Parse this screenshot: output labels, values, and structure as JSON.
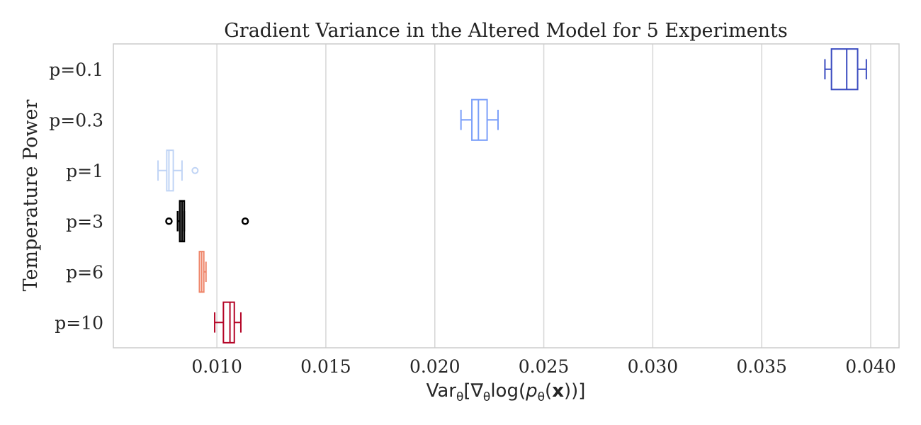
{
  "chart_data": {
    "type": "boxplot",
    "orientation": "horizontal",
    "title": "Gradient Variance in the Altered Model for 5 Experiments",
    "xlabel": {
      "prefix": "Var",
      "sub1": "θ",
      "mid1": "[∇",
      "sub2": "θ",
      "mid2": "log(",
      "p": "p",
      "sub3": "θ",
      "mid3": "(",
      "x": "x",
      "suffix": "))]"
    },
    "ylabel": "Temperature Power",
    "xlim": [
      0.00525,
      0.0413
    ],
    "xticks": [
      0.01,
      0.015,
      0.02,
      0.025,
      0.03,
      0.035,
      0.04
    ],
    "xtick_labels": [
      "0.010",
      "0.015",
      "0.020",
      "0.025",
      "0.030",
      "0.035",
      "0.040"
    ],
    "grid": "vertical",
    "categories": [
      "p=0.1",
      "p=0.3",
      "p=1",
      "p=3",
      "p=6",
      "p=10"
    ],
    "boxes": [
      {
        "label": "p=0.1",
        "color": "#3b4cc0",
        "whisker_low": 0.0379,
        "q1": 0.0382,
        "median": 0.0389,
        "q3": 0.0394,
        "whisker_high": 0.0398,
        "outliers": []
      },
      {
        "label": "p=0.3",
        "color": "#7b9ff9",
        "whisker_low": 0.0212,
        "q1": 0.0217,
        "median": 0.022,
        "q3": 0.0224,
        "whisker_high": 0.0229,
        "outliers": []
      },
      {
        "label": "p=1",
        "color": "#c0d4f5",
        "whisker_low": 0.0073,
        "q1": 0.0077,
        "median": 0.0078,
        "q3": 0.008,
        "whisker_high": 0.0084,
        "outliers": [
          0.009
        ]
      },
      {
        "label": "p=3",
        "color": "#000000",
        "whisker_low": 0.0082,
        "q1": 0.0083,
        "median": 0.0084,
        "q3": 0.0085,
        "whisker_high": 0.0085,
        "outliers": [
          0.0078,
          0.0113
        ]
      },
      {
        "label": "p=6",
        "color": "#ee8468",
        "whisker_low": 0.0092,
        "q1": 0.0092,
        "median": 0.0093,
        "q3": 0.0094,
        "whisker_high": 0.0095,
        "outliers": []
      },
      {
        "label": "p=10",
        "color": "#b40426",
        "whisker_low": 0.0099,
        "q1": 0.0103,
        "median": 0.0106,
        "q3": 0.0108,
        "whisker_high": 0.0111,
        "outliers": []
      }
    ]
  }
}
